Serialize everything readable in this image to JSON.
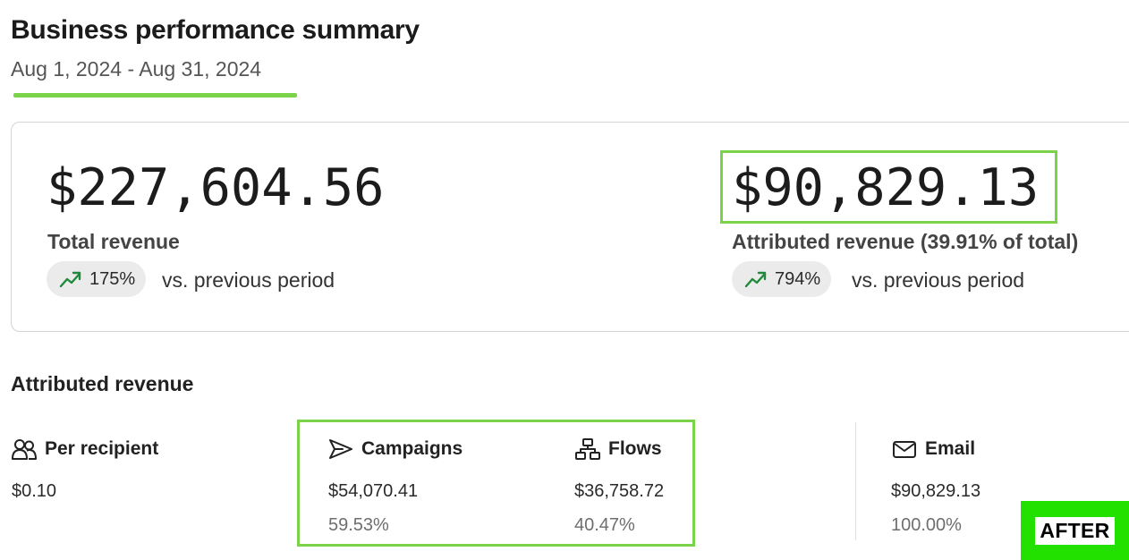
{
  "header": {
    "title": "Business performance summary",
    "date_range": "Aug 1, 2024 - Aug 31, 2024"
  },
  "summary": {
    "total": {
      "value": "$227,604.56",
      "label": "Total revenue",
      "change": "175%",
      "comparison": "vs. previous period"
    },
    "attributed": {
      "value": "$90,829.13",
      "label": "Attributed revenue (39.91% of total)",
      "change": "794%",
      "comparison": "vs. previous period"
    }
  },
  "attributed_section": {
    "title": "Attributed revenue",
    "per_recipient": {
      "label": "Per recipient",
      "value": "$0.10"
    },
    "campaigns": {
      "label": "Campaigns",
      "value": "$54,070.41",
      "percent": "59.53%"
    },
    "flows": {
      "label": "Flows",
      "value": "$36,758.72",
      "percent": "40.47%"
    },
    "email": {
      "label": "Email",
      "value": "$90,829.13",
      "percent": "100.00%"
    }
  },
  "badge": {
    "label": "AFTER"
  },
  "icons": {
    "trend": "trending-up-icon",
    "per_recipient": "users-icon",
    "campaigns": "send-icon",
    "flows": "flow-diagram-icon",
    "email": "mail-icon"
  },
  "colors": {
    "highlight": "#7bd34a",
    "badge_bg": "#22e000",
    "trend_up": "#1f8a3c",
    "pill_bg": "#ebebeb"
  }
}
